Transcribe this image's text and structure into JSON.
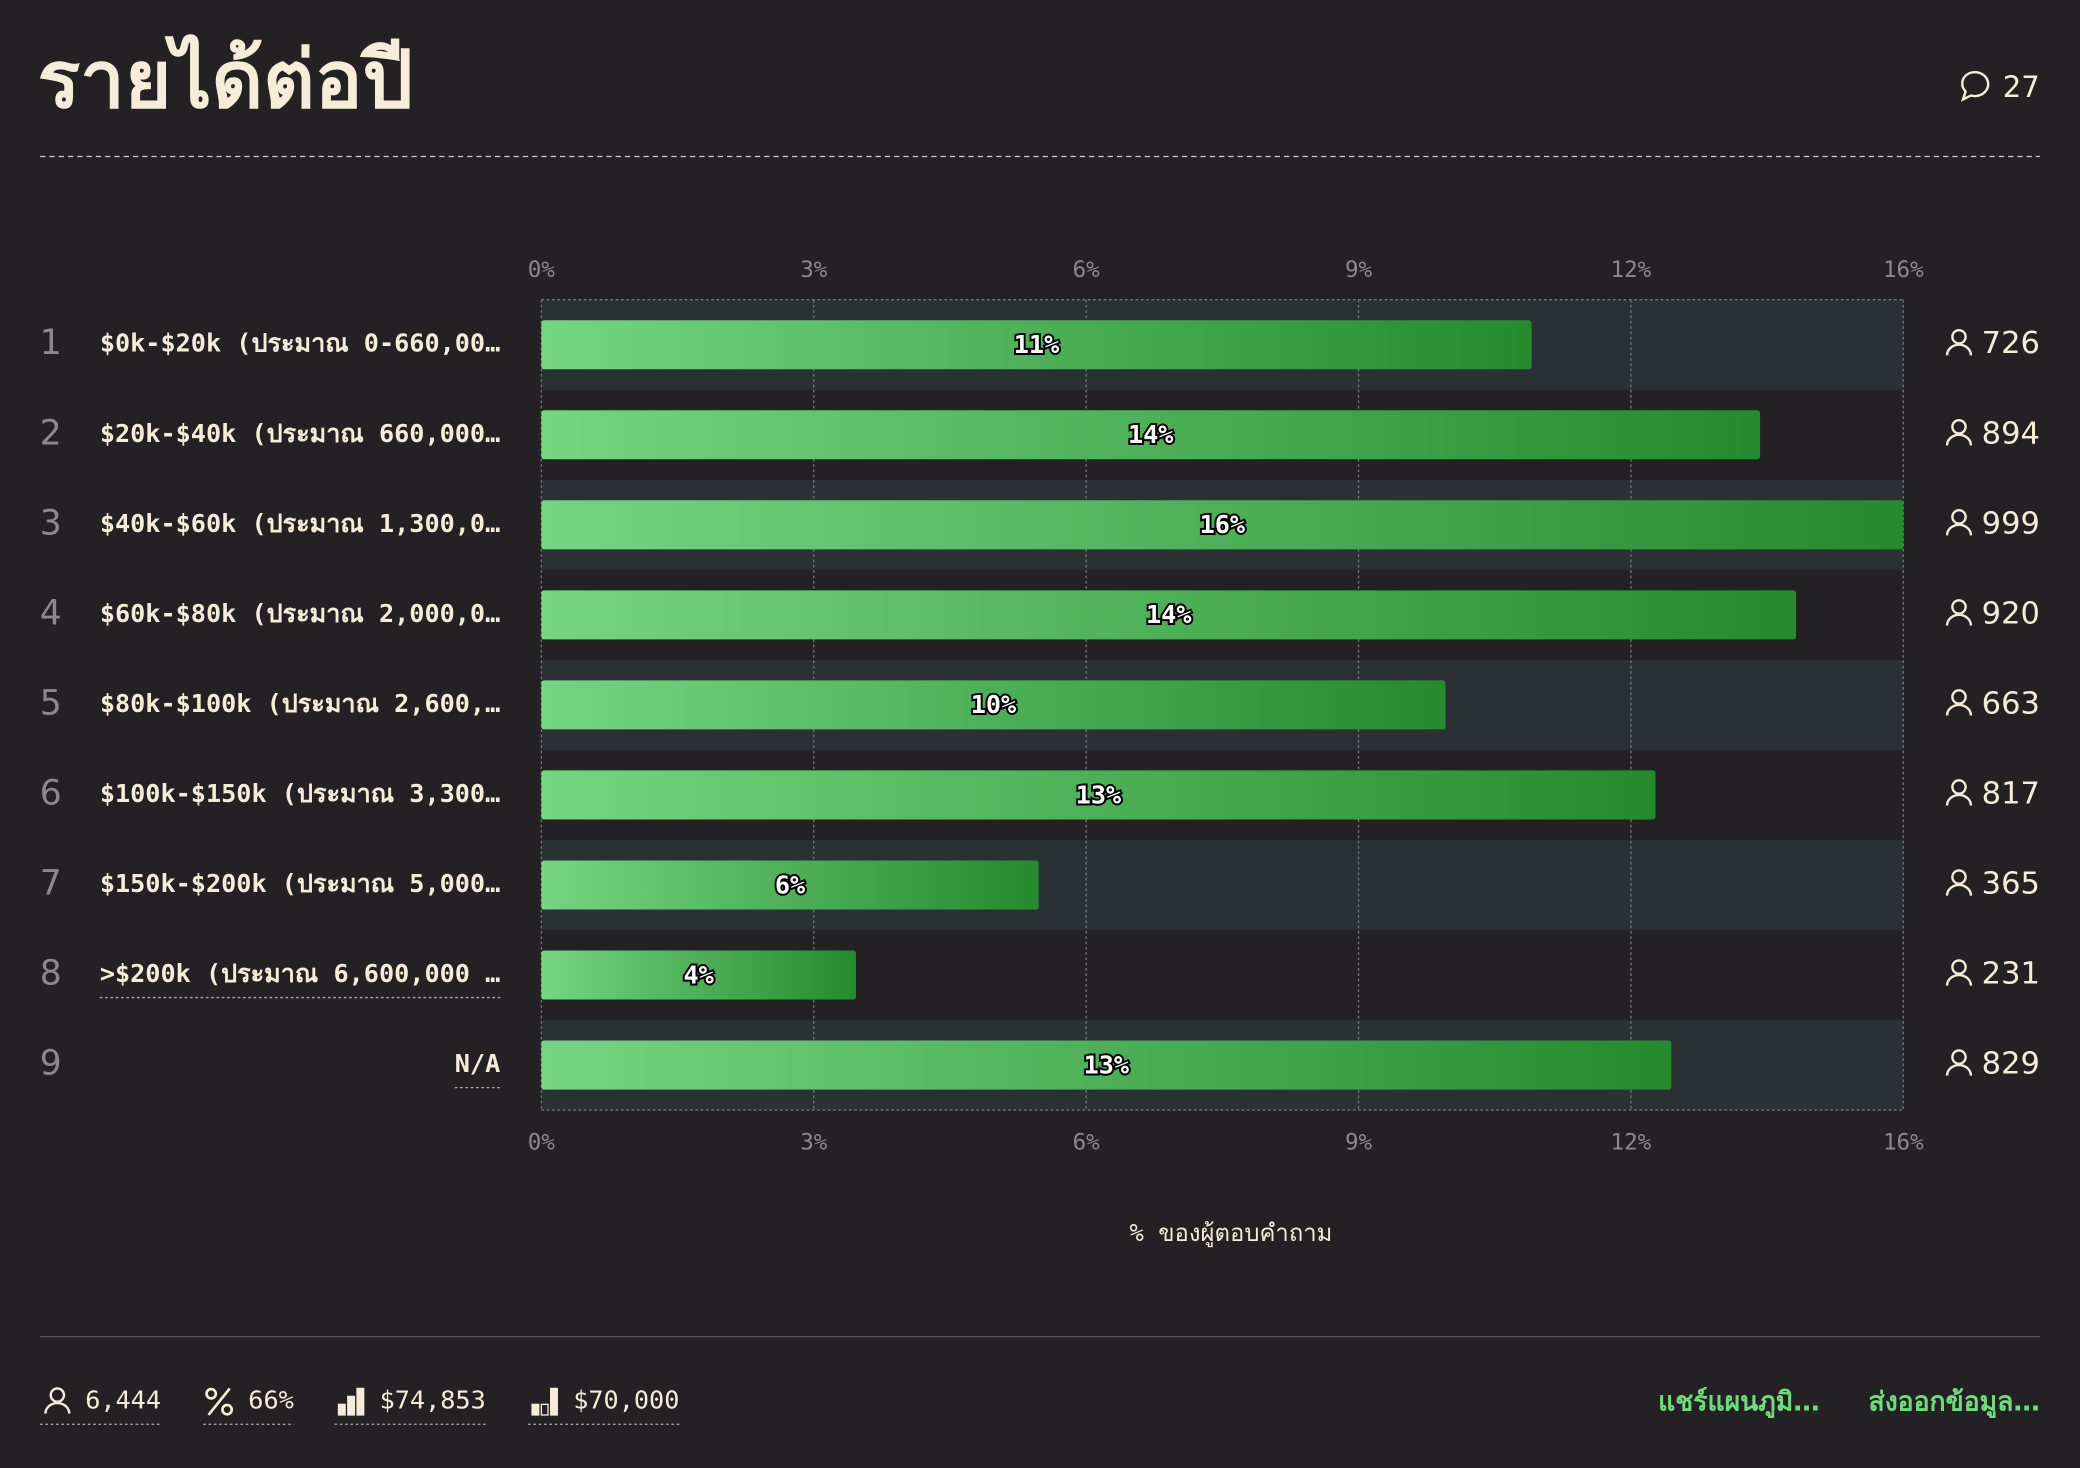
{
  "header": {
    "title": "รายได้ต่อปี",
    "comments": "27"
  },
  "chart_data": {
    "type": "bar",
    "orientation": "horizontal",
    "ranks": [
      1,
      2,
      3,
      4,
      5,
      6,
      7,
      8,
      9
    ],
    "categories": [
      "$0k-$20k (ประมาณ 0-660,00…",
      "$20k-$40k (ประมาณ 660,000…",
      "$40k-$60k (ประมาณ 1,300,0…",
      "$60k-$80k (ประมาณ 2,000,0…",
      "$80k-$100k (ประมาณ 2,600,…",
      "$100k-$150k (ประมาณ 3,300…",
      "$150k-$200k (ประมาณ 5,000…",
      ">$200k (ประมาณ 6,600,000 …",
      "N/A"
    ],
    "values": [
      11.27,
      13.87,
      15.5,
      14.28,
      10.29,
      12.68,
      5.66,
      3.58,
      12.86
    ],
    "value_labels": [
      "11%",
      "14%",
      "16%",
      "14%",
      "10%",
      "13%",
      "6%",
      "4%",
      "13%"
    ],
    "counts": [
      726,
      894,
      999,
      920,
      663,
      817,
      365,
      231,
      829
    ],
    "color": [
      "#74d680",
      "#258a2e"
    ],
    "xlim": [
      0,
      15.5
    ],
    "xticks": [
      {
        "value": 0,
        "label": "0%"
      },
      {
        "value": 3.1,
        "label": "3%"
      },
      {
        "value": 6.2,
        "label": "6%"
      },
      {
        "value": 9.3,
        "label": "9%"
      },
      {
        "value": 12.4,
        "label": "12%"
      },
      {
        "value": 15.5,
        "label": "16%"
      }
    ],
    "xlabel": "% ของผู้ตอบคำถาม",
    "grid": true
  },
  "footer": {
    "stats": [
      "6,444",
      "66%",
      "$74,853",
      "$70,000"
    ],
    "actions": [
      "แชร์แผนภูมิ…",
      "ส่งออกข้อมูล…"
    ]
  }
}
